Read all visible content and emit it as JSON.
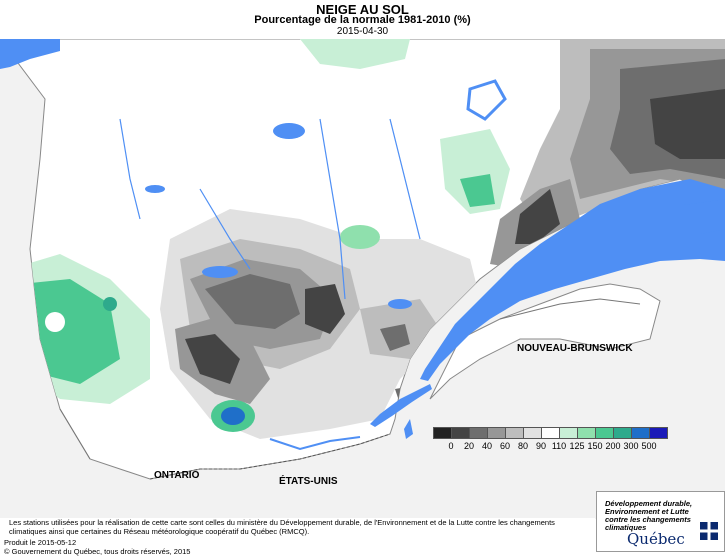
{
  "header": {
    "title": "NEIGE AU SOL",
    "subtitle": "Pourcentage de la normale 1981-2010 (%)",
    "date": "2015-04-30"
  },
  "map": {
    "labels": {
      "ontario": "ONTARIO",
      "etats_unis": "ÉTATS-UNIS",
      "nouveau_brunswick": "NOUVEAU-BRUNSWICK"
    },
    "colors": {
      "water": "#4f8ff4",
      "land": "#ffffff",
      "outside": "#f2f2f2"
    }
  },
  "legend": {
    "labels": [
      "0",
      "20",
      "40",
      "60",
      "80",
      "90",
      "110",
      "125",
      "150",
      "200",
      "300",
      "500"
    ],
    "colors": [
      "#222222",
      "#444444",
      "#6e6e6e",
      "#979797",
      "#bdbdbd",
      "#e1e1e1",
      "#ffffff",
      "#c8efd6",
      "#8fe0ad",
      "#4bc891",
      "#2eaa8c",
      "#1f6fc9",
      "#1b1bb8"
    ]
  },
  "footer": {
    "note": "Les stations utilisées pour la réalisation de cette carte sont celles du ministère du Développement durable, de l'Environnement et de la Lutte contre les changements climatiques ainsi que certaines du Réseau météorologique coopératif du Québec (RMCQ).",
    "produced": "Produit le 2015-05-12",
    "copyright": "© Gouvernement du Québec, tous droits réservés, 2015"
  },
  "logo": {
    "ministry": "Développement durable, Environnement et Lutte contre les changements climatiques",
    "name": "Québec"
  }
}
